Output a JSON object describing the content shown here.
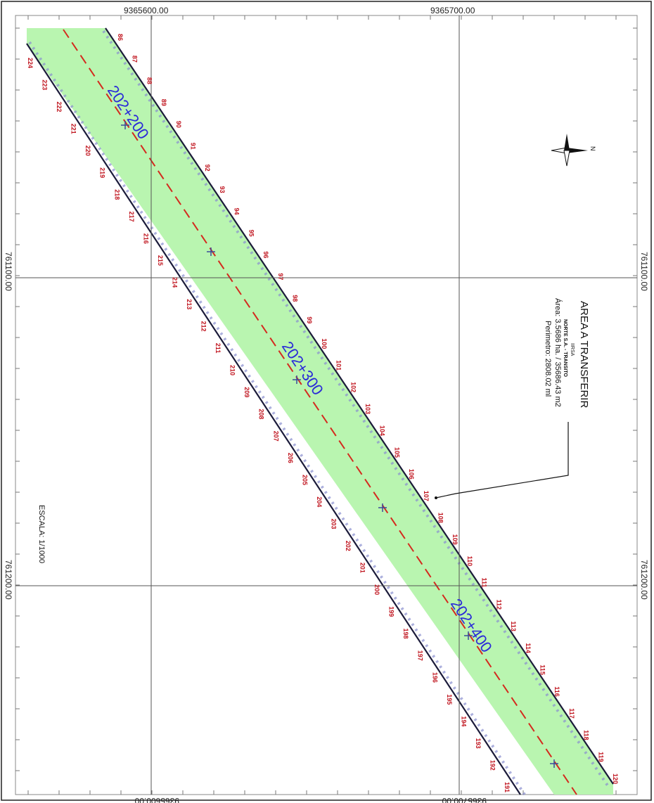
{
  "map": {
    "top_coords": [
      "9365600.00",
      "9365700.00"
    ],
    "bottom_coords": [
      "9365600.00",
      "9365700.00"
    ],
    "left_coords": [
      "761100.00",
      "761200.00"
    ],
    "right_coords": [
      "761100.00",
      "761200.00"
    ],
    "area_title": "AREA A TRANSFERIR",
    "area_owner": "IIRSA",
    "area_subtitle": "NORTE S.A. - TRANSITO",
    "area_value": "Área: 3.5686 ha. / 35686.43 m2",
    "perimeter_value": "Perimetro: 2808.02 ml",
    "scale_label": "ESCALA: 1/1000",
    "north_label": "N",
    "stations": [
      "202+200",
      "202+300",
      "202+400"
    ],
    "right_edge_points": [
      "86",
      "87",
      "88",
      "89",
      "90",
      "91",
      "92",
      "93",
      "94",
      "95",
      "96",
      "97",
      "98",
      "99",
      "100",
      "101",
      "102",
      "103",
      "104",
      "105",
      "106",
      "107",
      "108",
      "109",
      "110",
      "111",
      "112",
      "113",
      "114",
      "115",
      "116",
      "117",
      "118",
      "119",
      "120"
    ],
    "left_edge_points": [
      "224",
      "223",
      "222",
      "221",
      "220",
      "219",
      "218",
      "217",
      "216",
      "215",
      "214",
      "213",
      "212",
      "211",
      "210",
      "209",
      "208",
      "207",
      "206",
      "205",
      "204",
      "203",
      "202",
      "201",
      "200",
      "199",
      "198",
      "197",
      "196",
      "195",
      "194",
      "193",
      "192",
      "191"
    ],
    "colors": {
      "corridor_fill": "#b9f5b0",
      "edge_line": "#1b1b3a",
      "centerline": "#d42a1e",
      "point_label": "#c0141e",
      "station_label": "#2a2ad8",
      "grid_line": "#555555"
    }
  }
}
